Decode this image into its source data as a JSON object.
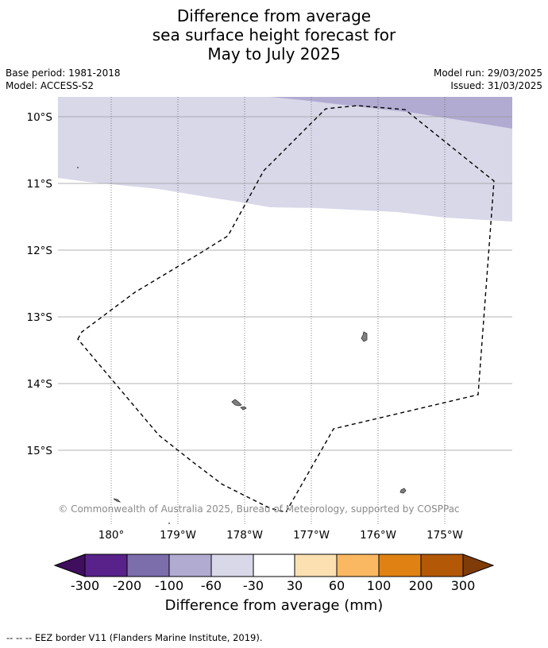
{
  "title": {
    "line1": "Difference from average",
    "line2": "sea surface height forecast for",
    "line3": "May to July 2025"
  },
  "meta": {
    "base_period": "Base period: 1981-2018",
    "model": "Model: ACCESS-S2",
    "model_run": "Model run: 29/03/2025",
    "issued": "Issued: 31/03/2025"
  },
  "map": {
    "lat_labels": [
      "10°S",
      "11°S",
      "12°S",
      "13°S",
      "14°S",
      "15°S"
    ],
    "lon_labels": [
      "180°",
      "179°W",
      "178°W",
      "177°W",
      "176°W",
      "175°W"
    ],
    "copyright": "© Commonwealth of Australia 2025, Bureau of Meteorology, supported by COSPPac",
    "colors": {
      "band_light": "#d8d8e9",
      "band_medium": "#b1abd2",
      "land": "#808080",
      "gridline": "#999999"
    }
  },
  "colorbar": {
    "ticks": [
      "-300",
      "-200",
      "-100",
      "-60",
      "-30",
      "30",
      "60",
      "100",
      "200",
      "300"
    ],
    "colors": [
      "#3f0e5c",
      "#58228a",
      "#7c6dab",
      "#b1abd2",
      "#d8d8e9",
      "#ffffff",
      "#fde0b2",
      "#fbb862",
      "#e08213",
      "#b35806",
      "#7f3b08"
    ],
    "title": "Difference from average (mm)"
  },
  "footer": {
    "eez_note": "--  --  -- EEZ border V11 (Flanders Marine Institute, 2019)."
  }
}
